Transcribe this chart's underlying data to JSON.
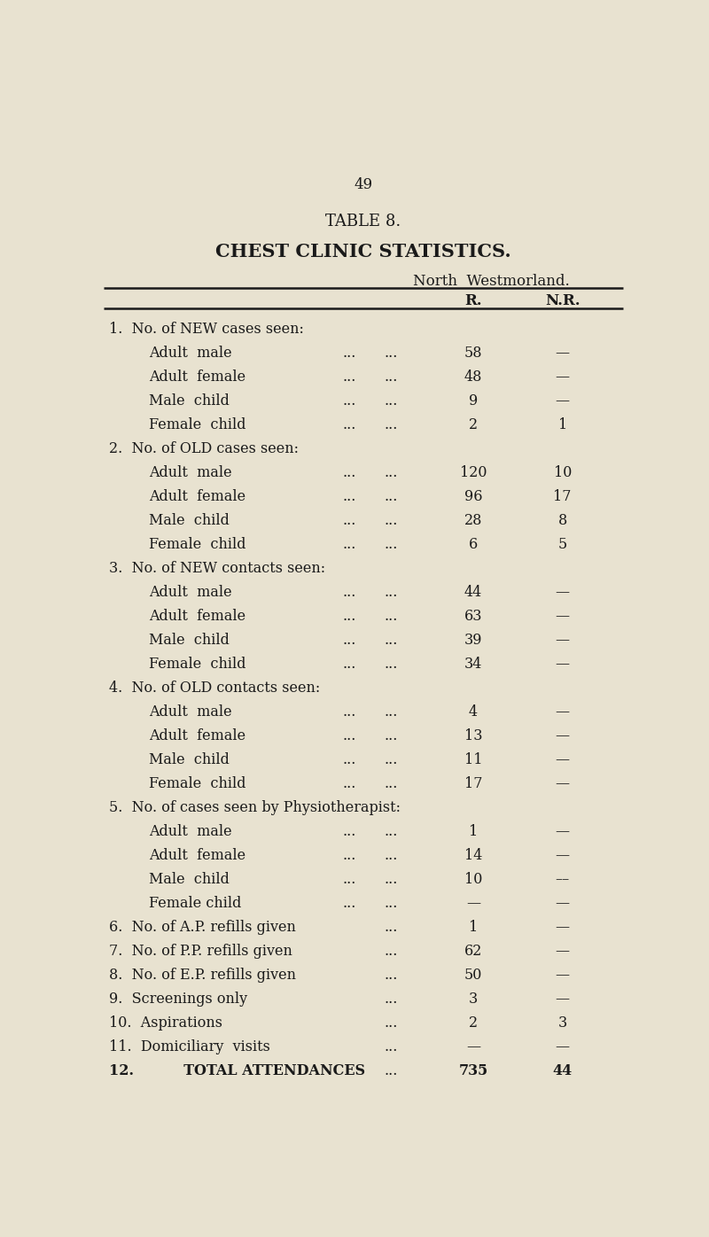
{
  "page_number": "49",
  "title1": "TABLE 8.",
  "title2": "CHEST CLINIC STATISTICS.",
  "subtitle": "North  Westmorland.",
  "col_headers": [
    "R.",
    "N.R."
  ],
  "background_color": "#e8e2d0",
  "text_color": "#1a1a1a",
  "rows": [
    {
      "indent": 0,
      "label": "1.  No. of NEW cases seen:",
      "r": "",
      "nr": "",
      "dots": false,
      "section": true
    },
    {
      "indent": 1,
      "label": "Adult  male",
      "r": "58",
      "nr": "—",
      "dots": true,
      "section": false
    },
    {
      "indent": 1,
      "label": "Adult  female",
      "r": "48",
      "nr": "—",
      "dots": true,
      "section": false
    },
    {
      "indent": 1,
      "label": "Male  child",
      "r": "9",
      "nr": "—",
      "dots": true,
      "section": false
    },
    {
      "indent": 1,
      "label": "Female  child",
      "r": "2",
      "nr": "1",
      "dots": true,
      "section": false
    },
    {
      "indent": 0,
      "label": "2.  No. of OLD cases seen:",
      "r": "",
      "nr": "",
      "dots": false,
      "section": true
    },
    {
      "indent": 1,
      "label": "Adult  male",
      "r": "120",
      "nr": "10",
      "dots": true,
      "section": false
    },
    {
      "indent": 1,
      "label": "Adult  female",
      "r": "96",
      "nr": "17",
      "dots": true,
      "section": false
    },
    {
      "indent": 1,
      "label": "Male  child",
      "r": "28",
      "nr": "8",
      "dots": true,
      "section": false
    },
    {
      "indent": 1,
      "label": "Female  child",
      "r": "6",
      "nr": "5",
      "dots": true,
      "section": false
    },
    {
      "indent": 0,
      "label": "3.  No. of NEW contacts seen:",
      "r": "",
      "nr": "",
      "dots": false,
      "section": true
    },
    {
      "indent": 1,
      "label": "Adult  male",
      "r": "44",
      "nr": "—",
      "dots": true,
      "section": false
    },
    {
      "indent": 1,
      "label": "Adult  female",
      "r": "63",
      "nr": "—",
      "dots": true,
      "section": false
    },
    {
      "indent": 1,
      "label": "Male  child",
      "r": "39",
      "nr": "—",
      "dots": true,
      "section": false
    },
    {
      "indent": 1,
      "label": "Female  child",
      "r": "34",
      "nr": "—",
      "dots": true,
      "section": false
    },
    {
      "indent": 0,
      "label": "4.  No. of OLD contacts seen:",
      "r": "",
      "nr": "",
      "dots": false,
      "section": true
    },
    {
      "indent": 1,
      "label": "Adult  male",
      "r": "4",
      "nr": "—",
      "dots": true,
      "section": false
    },
    {
      "indent": 1,
      "label": "Adult  female",
      "r": "13",
      "nr": "—",
      "dots": true,
      "section": false
    },
    {
      "indent": 1,
      "label": "Male  child",
      "r": "11",
      "nr": "—",
      "dots": true,
      "section": false
    },
    {
      "indent": 1,
      "label": "Female  child",
      "r": "17",
      "nr": "—",
      "dots": true,
      "section": false
    },
    {
      "indent": 0,
      "label": "5.  No. of cases seen by Physiotherapist:",
      "r": "",
      "nr": "",
      "dots": false,
      "section": true
    },
    {
      "indent": 1,
      "label": "Adult  male",
      "r": "1",
      "nr": "—",
      "dots": true,
      "section": false
    },
    {
      "indent": 1,
      "label": "Adult  female",
      "r": "14",
      "nr": "—",
      "dots": true,
      "section": false
    },
    {
      "indent": 1,
      "label": "Male  child",
      "r": "10",
      "nr": "––",
      "dots": true,
      "section": false
    },
    {
      "indent": 1,
      "label": "Female child",
      "r": "—",
      "nr": "—",
      "dots": true,
      "section": false
    },
    {
      "indent": 0,
      "label": "6.  No. of A.P. refills given",
      "r": "1",
      "nr": "—",
      "dots": true,
      "section": false
    },
    {
      "indent": 0,
      "label": "7.  No. of P.P. refills given",
      "r": "62",
      "nr": "—",
      "dots": true,
      "section": false
    },
    {
      "indent": 0,
      "label": "8.  No. of E.P. refills given",
      "r": "50",
      "nr": "—",
      "dots": true,
      "section": false
    },
    {
      "indent": 0,
      "label": "9.  Screenings only",
      "r": "3",
      "nr": "—",
      "dots": true,
      "section": false
    },
    {
      "indent": 0,
      "label": "10.  Aspirations",
      "r": "2",
      "nr": "3",
      "dots": true,
      "section": false
    },
    {
      "indent": 0,
      "label": "11.  Domiciliary  visits",
      "r": "—",
      "nr": "—",
      "dots": true,
      "section": false
    },
    {
      "indent": 0,
      "label": "12.          TOTAL ATTENDANCES",
      "r": "735",
      "nr": "44",
      "dots": true,
      "section": false,
      "bold": true
    }
  ]
}
